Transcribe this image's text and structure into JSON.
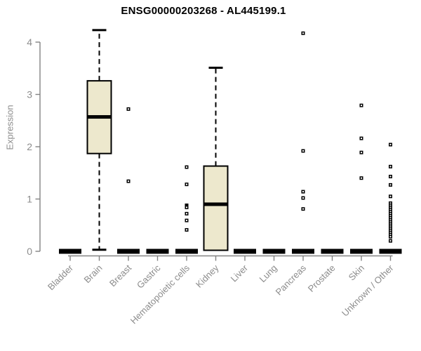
{
  "title": "ENSG00000203268 - AL445199.1",
  "colors": {
    "box_fill": "#EDE8CD",
    "box_stroke": "#000000",
    "median": "#000000",
    "whisker": "#000000",
    "outlier": "#000000",
    "axis_line": "#828282",
    "tick_text": "#8c8c8c",
    "title_text": "#000000",
    "background": "#ffffff"
  },
  "chart_data": {
    "type": "boxplot",
    "title": "ENSG00000203268 - AL445199.1",
    "xlabel": "",
    "ylabel": "Expression",
    "ylim": [
      0,
      4
    ],
    "yticks": [
      0,
      1,
      2,
      3,
      4
    ],
    "grid": false,
    "legend": "none",
    "categories": [
      "Bladder",
      "Brain",
      "Breast",
      "Gastric",
      "Hematopoietic cells",
      "Kidney",
      "Liver",
      "Lung",
      "Pancreas",
      "Prostate",
      "Skin",
      "Unknown / Other"
    ],
    "boxes": [
      {
        "category": "Bladder",
        "low": 0,
        "q1": 0,
        "median": 0,
        "q3": 0,
        "high": 0,
        "outliers": []
      },
      {
        "category": "Brain",
        "low": 0.03,
        "q1": 1.87,
        "median": 2.57,
        "q3": 3.26,
        "high": 4.23,
        "outliers": []
      },
      {
        "category": "Breast",
        "low": 0,
        "q1": 0,
        "median": 0,
        "q3": 0,
        "high": 0,
        "outliers": [
          2.72,
          1.34
        ]
      },
      {
        "category": "Gastric",
        "low": 0,
        "q1": 0,
        "median": 0,
        "q3": 0,
        "high": 0,
        "outliers": []
      },
      {
        "category": "Hematopoietic cells",
        "low": 0,
        "q1": 0,
        "median": 0,
        "q3": 0,
        "high": 0,
        "outliers": [
          1.61,
          1.28,
          0.88,
          0.86,
          0.84,
          0.72,
          0.59,
          0.41
        ]
      },
      {
        "category": "Kidney",
        "low": 0.02,
        "q1": 0.02,
        "median": 0.9,
        "q3": 1.63,
        "high": 3.51,
        "outliers": []
      },
      {
        "category": "Liver",
        "low": 0,
        "q1": 0,
        "median": 0,
        "q3": 0,
        "high": 0,
        "outliers": []
      },
      {
        "category": "Lung",
        "low": 0,
        "q1": 0,
        "median": 0,
        "q3": 0,
        "high": 0,
        "outliers": []
      },
      {
        "category": "Pancreas",
        "low": 0,
        "q1": 0,
        "median": 0,
        "q3": 0,
        "high": 0,
        "outliers": [
          4.17,
          1.92,
          1.14,
          1.02,
          0.81
        ]
      },
      {
        "category": "Prostate",
        "low": 0,
        "q1": 0,
        "median": 0,
        "q3": 0,
        "high": 0,
        "outliers": []
      },
      {
        "category": "Skin",
        "low": 0,
        "q1": 0,
        "median": 0,
        "q3": 0,
        "high": 0,
        "outliers": [
          2.79,
          2.16,
          1.89,
          1.4
        ]
      },
      {
        "category": "Unknown / Other",
        "low": 0,
        "q1": 0,
        "median": 0,
        "q3": 0,
        "high": 0,
        "outliers": [
          2.04,
          1.62,
          1.43,
          1.27,
          1.05,
          0.92,
          0.88,
          0.84,
          0.8,
          0.76,
          0.72,
          0.68,
          0.64,
          0.6,
          0.56,
          0.52,
          0.48,
          0.44,
          0.4,
          0.36,
          0.32,
          0.28,
          0.2
        ]
      }
    ]
  }
}
